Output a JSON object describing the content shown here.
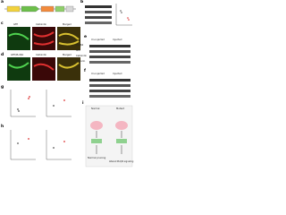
{
  "panels": [
    {
      "letter": "a"
    },
    {
      "letter": "b"
    },
    {
      "letter": "c"
    },
    {
      "letter": "d"
    },
    {
      "letter": "e"
    },
    {
      "letter": "f"
    },
    {
      "letter": "g"
    },
    {
      "letter": "h"
    },
    {
      "letter": "i"
    }
  ],
  "image_labels": {
    "gfp": "GFP",
    "calbindin": "Calbindin",
    "merged": "Merged",
    "gfp2": "GFP/PLCβ4",
    "calbindin2": "Calbindin",
    "merged2": "Merged"
  },
  "blot": {
    "uninjected": "Un-injected",
    "injected": "Injected",
    "rows": [
      "PLCβ4",
      "GFP",
      "Calbindin",
      "Vinculin"
    ]
  },
  "diagram": {
    "left": "Normal",
    "right": "Mutant",
    "bottom_left": "Normal pruning",
    "bottom_right": "Altered PLCβ4 signaling"
  }
}
